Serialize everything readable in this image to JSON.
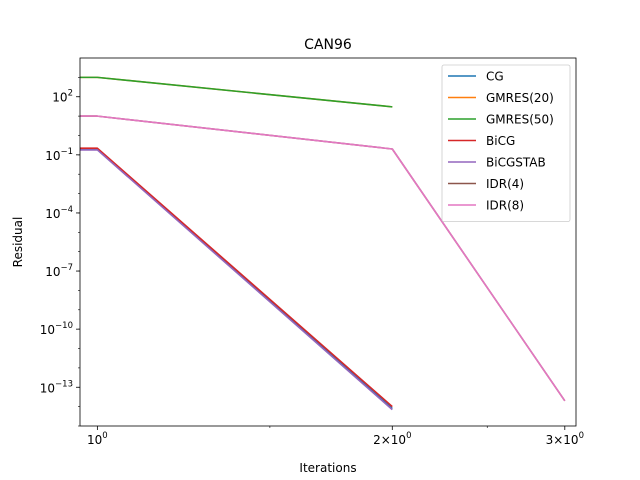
{
  "chart_data": {
    "type": "line",
    "title": "CAN96",
    "xlabel": "Iterations",
    "ylabel": "Residual",
    "xscale": "log",
    "yscale": "log",
    "xlim": [
      0.96,
      3.08
    ],
    "ylim": [
      1e-15,
      10000
    ],
    "x_ticks": [
      {
        "value": 1,
        "base": "10",
        "exp": "0",
        "coef": ""
      },
      {
        "value": 2,
        "base": "10",
        "exp": "0",
        "coef": "2×"
      },
      {
        "value": 3,
        "base": "10",
        "exp": "0",
        "coef": "3×"
      }
    ],
    "y_ticks": [
      {
        "value": 100,
        "base": "10",
        "exp": "2"
      },
      {
        "value": 0.1,
        "base": "10",
        "exp": "−1"
      },
      {
        "value": 0.0001,
        "base": "10",
        "exp": "−4"
      },
      {
        "value": 1e-07,
        "base": "10",
        "exp": "−7"
      },
      {
        "value": 1e-10,
        "base": "10",
        "exp": "−10"
      },
      {
        "value": 1e-13,
        "base": "10",
        "exp": "−13"
      }
    ],
    "legend_position": "top-right",
    "series": [
      {
        "name": "CG",
        "color": "#1f77b4",
        "x": [
          0.96,
          1,
          2
        ],
        "y": [
          0.2,
          0.2,
          8e-15
        ]
      },
      {
        "name": "GMRES(20)",
        "color": "#ff7f0e",
        "x": [
          0.96,
          1,
          2
        ],
        "y": [
          1000,
          1000,
          30
        ]
      },
      {
        "name": "GMRES(50)",
        "color": "#2ca02c",
        "x": [
          0.96,
          1,
          2
        ],
        "y": [
          1000,
          1000,
          30
        ]
      },
      {
        "name": "BiCG",
        "color": "#d62728",
        "x": [
          0.96,
          1,
          2
        ],
        "y": [
          0.22,
          0.22,
          1e-14
        ]
      },
      {
        "name": "BiCGSTAB",
        "color": "#9467bd",
        "x": [
          0.96,
          1,
          2
        ],
        "y": [
          0.18,
          0.18,
          7e-15
        ]
      },
      {
        "name": "IDR(4)",
        "color": "#8c564b",
        "x": [
          0.96,
          1,
          2,
          3
        ],
        "y": [
          10,
          10,
          0.2,
          2e-14
        ]
      },
      {
        "name": "IDR(8)",
        "color": "#e377c2",
        "x": [
          0.96,
          1,
          2,
          3
        ],
        "y": [
          10,
          10,
          0.2,
          2e-14
        ]
      }
    ]
  }
}
